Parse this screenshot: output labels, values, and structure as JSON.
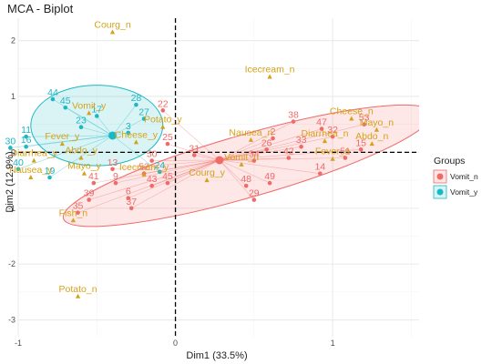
{
  "chart_data": {
    "type": "scatter",
    "title": "MCA - Biplot",
    "xlabel": "Dim1 (33.5%)",
    "ylabel": "Dim2 (12.9%)",
    "xlim": [
      -1.0,
      1.55
    ],
    "ylim": [
      -3.3,
      2.4
    ],
    "x_ticks": [
      -1,
      0,
      1
    ],
    "y_ticks": [
      -3,
      -2,
      -1,
      0,
      1,
      2
    ],
    "grid": true,
    "legend_position": "right",
    "legend_title": "Groups",
    "colors": {
      "Vomit_n": "#f06a67",
      "Vomit_y": "#1ab8c4",
      "variable": "#d4a21a",
      "grid": "#ebebeb"
    },
    "groups": [
      {
        "name": "Vomit_n",
        "color": "#f06a67",
        "centroid": [
          0.28,
          -0.14
        ],
        "ellipse": {
          "cx": 0.46,
          "cy": -0.24,
          "rx": 1.22,
          "ry": 0.56,
          "angle_deg": 16
        },
        "points": [
          {
            "label": "38",
            "x": 0.75,
            "y": 0.55
          },
          {
            "label": "47",
            "x": 0.93,
            "y": 0.42
          },
          {
            "label": "53",
            "x": 1.2,
            "y": 0.5
          },
          {
            "label": "32",
            "x": 1.0,
            "y": 0.28
          },
          {
            "label": "15",
            "x": 1.18,
            "y": 0.05
          },
          {
            "label": "51",
            "x": 1.08,
            "y": -0.1
          },
          {
            "label": "33",
            "x": 0.8,
            "y": 0.1
          },
          {
            "label": "2",
            "x": 0.62,
            "y": 0.25
          },
          {
            "label": "26",
            "x": 0.58,
            "y": 0.05
          },
          {
            "label": "42",
            "x": 0.72,
            "y": -0.1
          },
          {
            "label": "34",
            "x": 0.5,
            "y": -0.15
          },
          {
            "label": "14",
            "x": 0.92,
            "y": -0.38
          },
          {
            "label": "49",
            "x": 0.6,
            "y": -0.55
          },
          {
            "label": "48",
            "x": 0.45,
            "y": -0.6
          },
          {
            "label": "29",
            "x": 0.5,
            "y": -0.85
          },
          {
            "label": "22",
            "x": -0.08,
            "y": 0.75
          },
          {
            "label": "25",
            "x": -0.05,
            "y": 0.15
          },
          {
            "label": "31",
            "x": 0.12,
            "y": -0.05
          },
          {
            "label": "50",
            "x": -0.15,
            "y": -0.15
          },
          {
            "label": "43",
            "x": -0.15,
            "y": -0.6
          },
          {
            "label": "45",
            "x": -0.05,
            "y": -0.55
          },
          {
            "label": "39",
            "x": -0.55,
            "y": -0.85
          },
          {
            "label": "6",
            "x": -0.3,
            "y": -0.82
          },
          {
            "label": "37",
            "x": -0.28,
            "y": -1.0
          },
          {
            "label": "35",
            "x": -0.62,
            "y": -1.08
          },
          {
            "label": "41",
            "x": -0.52,
            "y": -0.55
          },
          {
            "label": "9",
            "x": -0.38,
            "y": -0.55
          },
          {
            "label": "13",
            "x": -0.4,
            "y": -0.3
          },
          {
            "label": "52",
            "x": -0.2,
            "y": -0.38
          }
        ]
      },
      {
        "name": "Vomit_y",
        "color": "#1ab8c4",
        "centroid": [
          -0.4,
          0.3
        ],
        "ellipse": {
          "cx": -0.5,
          "cy": 0.48,
          "rx": 0.42,
          "ry": 0.72,
          "angle_deg": 0
        },
        "points": [
          {
            "label": "44",
            "x": -0.78,
            "y": 0.95
          },
          {
            "label": "45",
            "x": -0.7,
            "y": 0.8
          },
          {
            "label": "28",
            "x": -0.25,
            "y": 0.85
          },
          {
            "label": "17",
            "x": -0.5,
            "y": 0.65
          },
          {
            "label": "27",
            "x": -0.2,
            "y": 0.6
          },
          {
            "label": "23",
            "x": -0.6,
            "y": 0.45
          },
          {
            "label": "3",
            "x": -0.3,
            "y": 0.35
          },
          {
            "label": "11",
            "x": -0.95,
            "y": 0.28
          },
          {
            "label": "16",
            "x": -0.95,
            "y": 0.1
          },
          {
            "label": "30",
            "x": -1.05,
            "y": 0.08
          },
          {
            "label": "40",
            "x": -1.0,
            "y": -0.3
          },
          {
            "label": "19",
            "x": -0.8,
            "y": -0.45
          },
          {
            "label": "24",
            "x": -0.1,
            "y": -0.35
          }
        ]
      }
    ],
    "variables": [
      {
        "label": "Courg_n",
        "x": -0.4,
        "y": 2.15
      },
      {
        "label": "Icecream_n",
        "x": 0.6,
        "y": 1.35
      },
      {
        "label": "Cheese_n",
        "x": 1.12,
        "y": 0.6
      },
      {
        "label": "Mayo_n",
        "x": 1.28,
        "y": 0.4
      },
      {
        "label": "Abdo_n",
        "x": 1.25,
        "y": 0.15
      },
      {
        "label": "Diarrhea_n",
        "x": 0.95,
        "y": 0.2
      },
      {
        "label": "Fever_n",
        "x": 1.0,
        "y": -0.12
      },
      {
        "label": "Nausea_n",
        "x": 0.48,
        "y": 0.22
      },
      {
        "label": "Vomit_n",
        "x": 0.42,
        "y": -0.22
      },
      {
        "label": "Courg_y",
        "x": 0.2,
        "y": -0.5
      },
      {
        "label": "Icecream_y",
        "x": -0.2,
        "y": -0.4
      },
      {
        "label": "Mayo_y",
        "x": -0.58,
        "y": -0.38
      },
      {
        "label": "Nausea_y",
        "x": -0.92,
        "y": -0.45
      },
      {
        "label": "Diarrhea_y",
        "x": -0.9,
        "y": -0.15
      },
      {
        "label": "Abdo_y",
        "x": -0.6,
        "y": -0.1
      },
      {
        "label": "Fever_y",
        "x": -0.72,
        "y": 0.15
      },
      {
        "label": "Cheese_y",
        "x": -0.25,
        "y": 0.18
      },
      {
        "label": "Potato_y",
        "x": -0.08,
        "y": 0.45
      },
      {
        "label": "Vomit_y",
        "x": -0.55,
        "y": 0.7
      },
      {
        "label": "Fish_n",
        "x": -0.65,
        "y": -1.22
      },
      {
        "label": "Potato_n",
        "x": -0.62,
        "y": -2.58
      }
    ]
  }
}
